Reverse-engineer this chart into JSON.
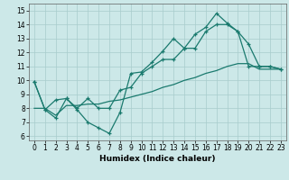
{
  "xlabel": "Humidex (Indice chaleur)",
  "xlim": [
    -0.5,
    23.5
  ],
  "ylim": [
    5.7,
    15.5
  ],
  "yticks": [
    6,
    7,
    8,
    9,
    10,
    11,
    12,
    13,
    14,
    15
  ],
  "xticks": [
    0,
    1,
    2,
    3,
    4,
    5,
    6,
    7,
    8,
    9,
    10,
    11,
    12,
    13,
    14,
    15,
    16,
    17,
    18,
    19,
    20,
    21,
    22,
    23
  ],
  "line_color": "#1a7a6e",
  "bg_color": "#cce8e8",
  "grid_color": "#a8cccc",
  "line1_y": [
    9.9,
    7.9,
    7.3,
    8.7,
    7.9,
    7.0,
    6.6,
    6.2,
    7.7,
    10.5,
    10.6,
    11.3,
    12.1,
    13.0,
    12.3,
    13.3,
    13.8,
    14.8,
    14.1,
    13.5,
    12.6,
    11.0,
    11.0,
    10.8
  ],
  "line2_y": [
    9.9,
    7.9,
    8.6,
    8.7,
    8.0,
    8.7,
    8.0,
    8.0,
    9.3,
    9.5,
    10.5,
    11.0,
    11.5,
    11.5,
    12.3,
    12.3,
    13.5,
    14.0,
    14.0,
    13.5,
    11.0,
    11.0,
    11.0,
    10.8
  ],
  "line3_y": [
    8.0,
    8.0,
    7.5,
    8.2,
    8.2,
    8.3,
    8.3,
    8.5,
    8.6,
    8.8,
    9.0,
    9.2,
    9.5,
    9.7,
    10.0,
    10.2,
    10.5,
    10.7,
    11.0,
    11.2,
    11.2,
    10.8,
    10.8,
    10.8
  ]
}
